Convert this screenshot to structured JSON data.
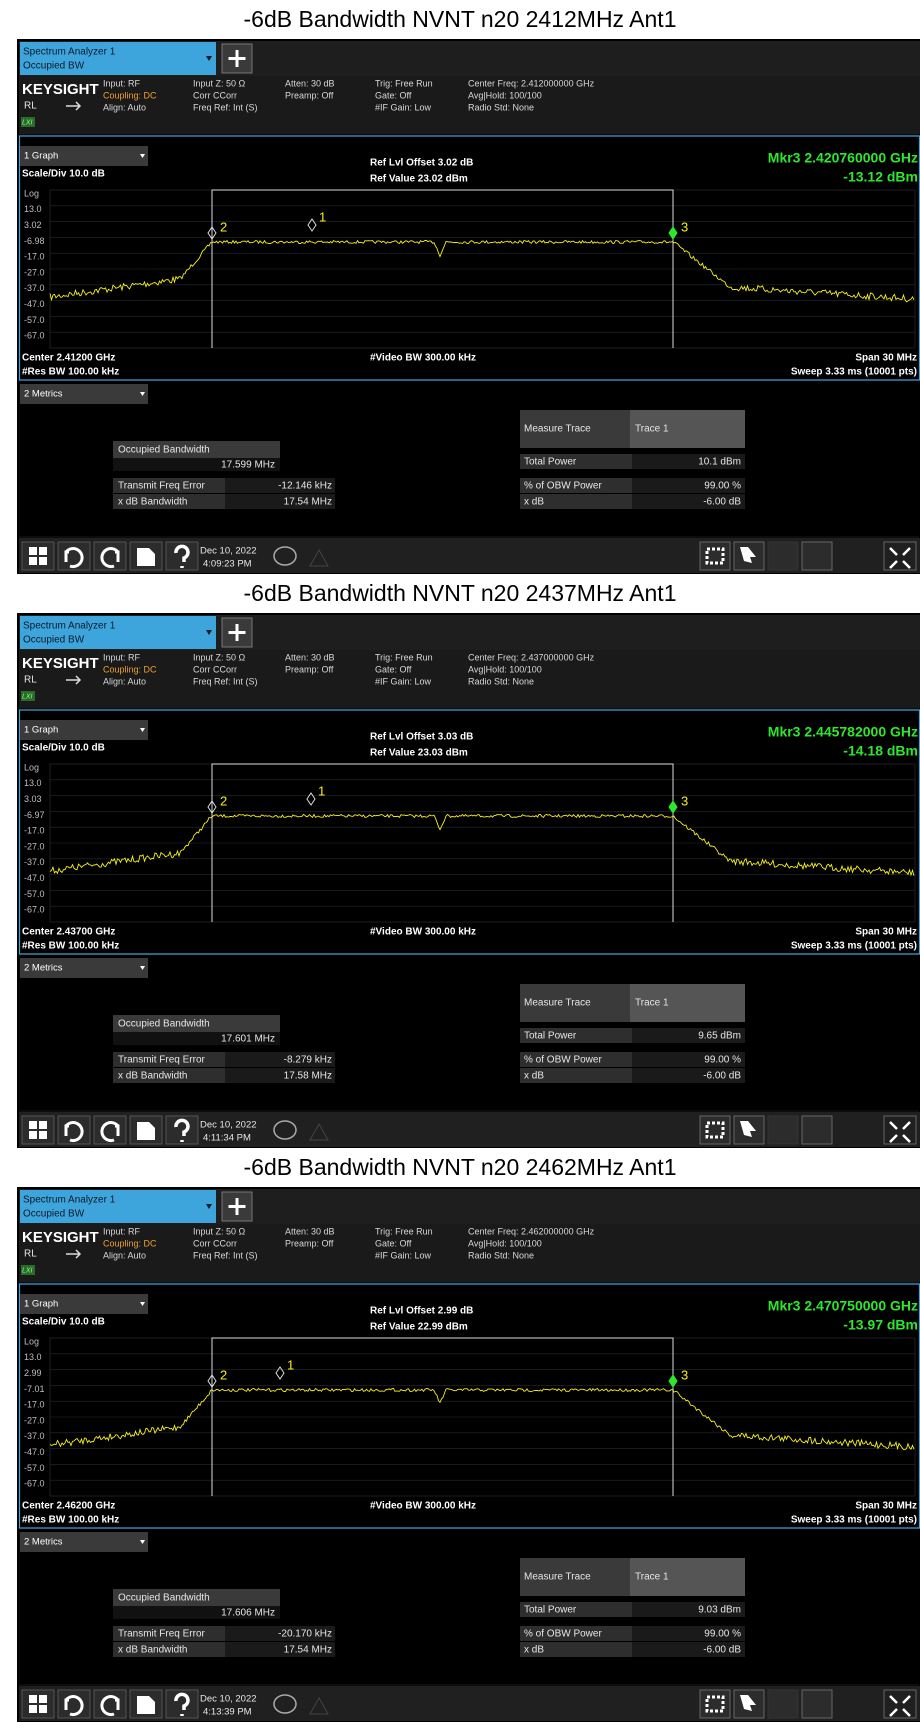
{
  "panels": [
    {
      "title": "-6dB Bandwidth NVNT n20 2412MHz Ant1",
      "tab": [
        "Spectrum Analyzer 1",
        "Occupied BW"
      ],
      "brand": "KEYSIGHT",
      "rl": "RL",
      "lxi": "LXI",
      "info": [
        [
          "Input: RF",
          "Coupling: DC",
          "Align: Auto"
        ],
        [
          "Input Z: 50 Ω",
          "Corr CCorr",
          "Freq Ref: Int (S)"
        ],
        [
          "Atten: 30 dB",
          "Preamp: Off"
        ],
        [
          "Trig: Free Run",
          "Gate: Off",
          "#IF Gain: Low"
        ],
        [
          "Center Freq: 2.412000000 GHz",
          "Avg|Hold: 100/100",
          "Radio Std: None"
        ]
      ],
      "graph_tab": "1 Graph",
      "scale": "Scale/Div 10.0 dB",
      "ref_offset": "Ref Lvl Offset 3.02 dB",
      "ref_value": "Ref Value 23.02 dBm",
      "marker_freq": "Mkr3  2.420760000 GHz",
      "marker_level": "-13.12 dBm",
      "yticks": [
        "Log",
        "13.0",
        "3.02",
        "-6.98",
        "-17.0",
        "-27.0",
        "-37.0",
        "-47.0",
        "-57.0",
        "-67.0"
      ],
      "markers": [
        "1",
        "2",
        "3"
      ],
      "center": "Center 2.41200 GHz",
      "res_bw": "#Res BW 100.00 kHz",
      "video_bw": "#Video BW 300.00 kHz",
      "span": "Span 30 MHz",
      "sweep": "Sweep 3.33 ms (10001 pts)",
      "metrics_tab": "2 Metrics",
      "obw_label": "Occupied Bandwidth",
      "obw_value": "17.599 MHz",
      "left_rows": [
        [
          "Transmit Freq Error",
          "-12.146 kHz"
        ],
        [
          "x dB Bandwidth",
          "17.54 MHz"
        ]
      ],
      "right_header": [
        "Measure Trace",
        "Trace 1"
      ],
      "right_rows": [
        [
          "Total Power",
          "10.1 dBm"
        ],
        [
          "% of OBW Power",
          "99.00 %"
        ],
        [
          "x dB",
          "-6.00 dB"
        ]
      ],
      "date": "Dec 10, 2022",
      "time": "4:09:23 PM"
    },
    {
      "title": "-6dB Bandwidth NVNT n20 2437MHz Ant1",
      "tab": [
        "Spectrum Analyzer 1",
        "Occupied BW"
      ],
      "brand": "KEYSIGHT",
      "rl": "RL",
      "lxi": "LXI",
      "info": [
        [
          "Input: RF",
          "Coupling: DC",
          "Align: Auto"
        ],
        [
          "Input Z: 50 Ω",
          "Corr CCorr",
          "Freq Ref: Int (S)"
        ],
        [
          "Atten: 30 dB",
          "Preamp: Off"
        ],
        [
          "Trig: Free Run",
          "Gate: Off",
          "#IF Gain: Low"
        ],
        [
          "Center Freq: 2.437000000 GHz",
          "Avg|Hold: 100/100",
          "Radio Std: None"
        ]
      ],
      "graph_tab": "1 Graph",
      "scale": "Scale/Div 10.0 dB",
      "ref_offset": "Ref Lvl Offset 3.03 dB",
      "ref_value": "Ref Value 23.03 dBm",
      "marker_freq": "Mkr3  2.445782000 GHz",
      "marker_level": "-14.18 dBm",
      "yticks": [
        "Log",
        "13.0",
        "3.03",
        "-6.97",
        "-17.0",
        "-27.0",
        "-37.0",
        "-47.0",
        "-57.0",
        "-67.0"
      ],
      "markers": [
        "1",
        "2",
        "3"
      ],
      "center": "Center 2.43700 GHz",
      "res_bw": "#Res BW 100.00 kHz",
      "video_bw": "#Video BW 300.00 kHz",
      "span": "Span 30 MHz",
      "sweep": "Sweep 3.33 ms (10001 pts)",
      "metrics_tab": "2 Metrics",
      "obw_label": "Occupied Bandwidth",
      "obw_value": "17.601 MHz",
      "left_rows": [
        [
          "Transmit Freq Error",
          "-8.279 kHz"
        ],
        [
          "x dB Bandwidth",
          "17.58 MHz"
        ]
      ],
      "right_header": [
        "Measure Trace",
        "Trace 1"
      ],
      "right_rows": [
        [
          "Total Power",
          "9.65 dBm"
        ],
        [
          "% of OBW Power",
          "99.00 %"
        ],
        [
          "x dB",
          "-6.00 dB"
        ]
      ],
      "date": "Dec 10, 2022",
      "time": "4:11:34 PM"
    },
    {
      "title": "-6dB Bandwidth NVNT n20 2462MHz Ant1",
      "tab": [
        "Spectrum Analyzer 1",
        "Occupied BW"
      ],
      "brand": "KEYSIGHT",
      "rl": "RL",
      "lxi": "LXI",
      "info": [
        [
          "Input: RF",
          "Coupling: DC",
          "Align: Auto"
        ],
        [
          "Input Z: 50 Ω",
          "Corr CCorr",
          "Freq Ref: Int (S)"
        ],
        [
          "Atten: 30 dB",
          "Preamp: Off"
        ],
        [
          "Trig: Free Run",
          "Gate: Off",
          "#IF Gain: Low"
        ],
        [
          "Center Freq: 2.462000000 GHz",
          "Avg|Hold: 100/100",
          "Radio Std: None"
        ]
      ],
      "graph_tab": "1 Graph",
      "scale": "Scale/Div 10.0 dB",
      "ref_offset": "Ref Lvl Offset 2.99 dB",
      "ref_value": "Ref Value 22.99 dBm",
      "marker_freq": "Mkr3  2.470750000 GHz",
      "marker_level": "-13.97 dBm",
      "yticks": [
        "Log",
        "13.0",
        "2.99",
        "-7.01",
        "-17.0",
        "-27.0",
        "-37.0",
        "-47.0",
        "-57.0",
        "-67.0"
      ],
      "markers": [
        "1",
        "2",
        "3"
      ],
      "center": "Center 2.46200 GHz",
      "res_bw": "#Res BW 100.00 kHz",
      "video_bw": "#Video BW 300.00 kHz",
      "span": "Span 30 MHz",
      "sweep": "Sweep 3.33 ms (10001 pts)",
      "metrics_tab": "2 Metrics",
      "obw_label": "Occupied Bandwidth",
      "obw_value": "17.606 MHz",
      "left_rows": [
        [
          "Transmit Freq Error",
          "-20.170 kHz"
        ],
        [
          "x dB Bandwidth",
          "17.54 MHz"
        ]
      ],
      "right_header": [
        "Measure Trace",
        "Trace 1"
      ],
      "right_rows": [
        [
          "Total Power",
          "9.03 dBm"
        ],
        [
          "% of OBW Power",
          "99.00 %"
        ],
        [
          "x dB",
          "-6.00 dB"
        ]
      ],
      "date": "Dec 10, 2022",
      "time": "4:13:39 PM"
    }
  ]
}
